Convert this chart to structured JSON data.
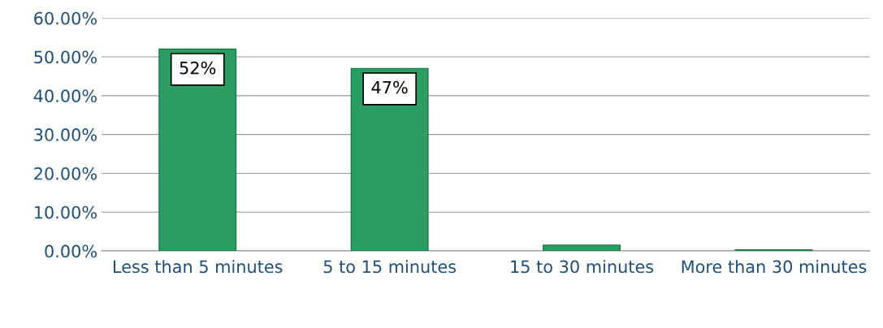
{
  "chart_data": {
    "type": "bar",
    "categories": [
      "Less than 5 minutes",
      "5 to 15 minutes",
      "15 to 30 minutes",
      "More than 30 minutes"
    ],
    "values": [
      52,
      47,
      1.5,
      0.3
    ],
    "value_labels": [
      "52%",
      "47%",
      null,
      null
    ],
    "color": "#2a9d62",
    "ylim": [
      0,
      60
    ],
    "yticks": [
      {
        "value": 0,
        "label": "0.00%"
      },
      {
        "value": 10,
        "label": "10.00%"
      },
      {
        "value": 20,
        "label": "20.00%"
      },
      {
        "value": 30,
        "label": "30.00%"
      },
      {
        "value": 40,
        "label": "40.00%"
      },
      {
        "value": 50,
        "label": "50.00%"
      },
      {
        "value": 60,
        "label": "60.00%"
      }
    ],
    "grid": "y"
  }
}
